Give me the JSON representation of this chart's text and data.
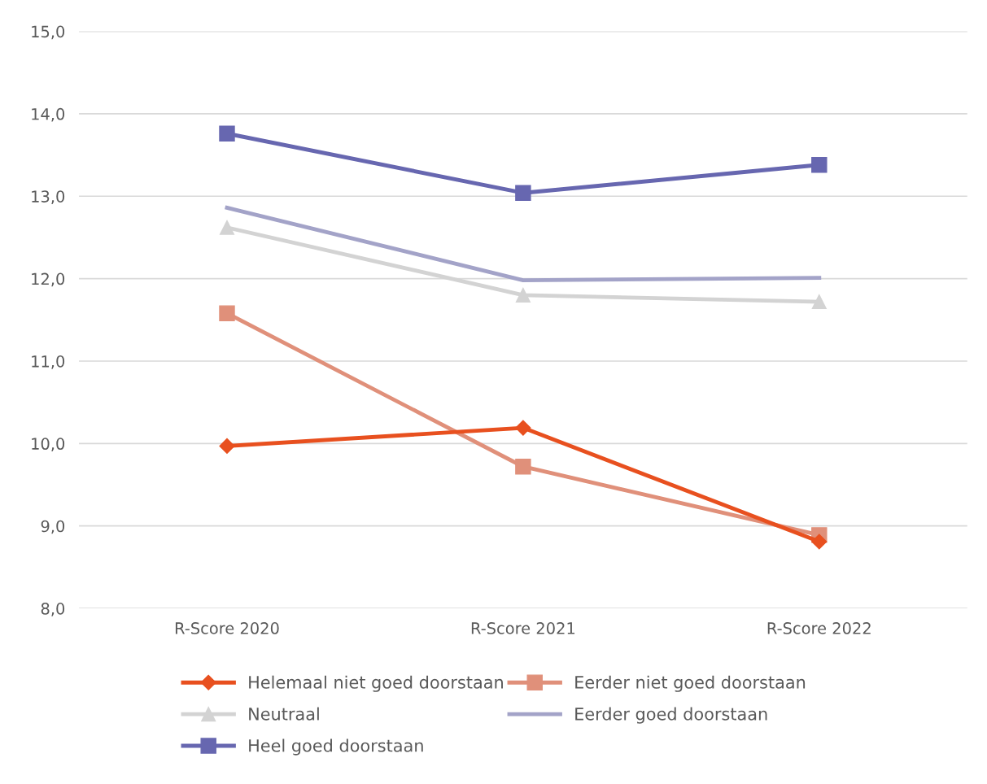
{
  "chart_data": {
    "type": "line",
    "categories": [
      "R-Score 2020",
      "R-Score 2021",
      "R-Score 2022"
    ],
    "series": [
      {
        "name": "Helemaal niet goed doorstaan",
        "color": "#e8501f",
        "marker": "diamond",
        "values": [
          9.97,
          10.19,
          8.81
        ]
      },
      {
        "name": "Eerder niet goed doorstaan",
        "color": "#e0907a",
        "marker": "square",
        "values": [
          11.58,
          9.72,
          8.89
        ]
      },
      {
        "name": "Neutraal",
        "color": "#d3d3d3",
        "marker": "triangle",
        "values": [
          12.62,
          11.8,
          11.72
        ]
      },
      {
        "name": "Eerder goed doorstaan",
        "color": "#a3a3c8",
        "marker": "none",
        "values": [
          12.86,
          11.98,
          12.01
        ]
      },
      {
        "name": "Heel goed doorstaan",
        "color": "#6767b0",
        "marker": "square",
        "values": [
          13.76,
          13.04,
          13.38
        ]
      }
    ],
    "ylim": [
      8,
      15
    ],
    "yticks": [
      {
        "value": 8,
        "label": "8,0"
      },
      {
        "value": 9,
        "label": "9,0"
      },
      {
        "value": 10,
        "label": "10,0"
      },
      {
        "value": 11,
        "label": "11,0"
      },
      {
        "value": 12,
        "label": "12,0"
      },
      {
        "value": 13,
        "label": "13,0"
      },
      {
        "value": 14,
        "label": "14,0"
      },
      {
        "value": 15,
        "label": "15,0"
      }
    ],
    "grid": "y",
    "legend": "bottom",
    "line_style": "solid"
  }
}
